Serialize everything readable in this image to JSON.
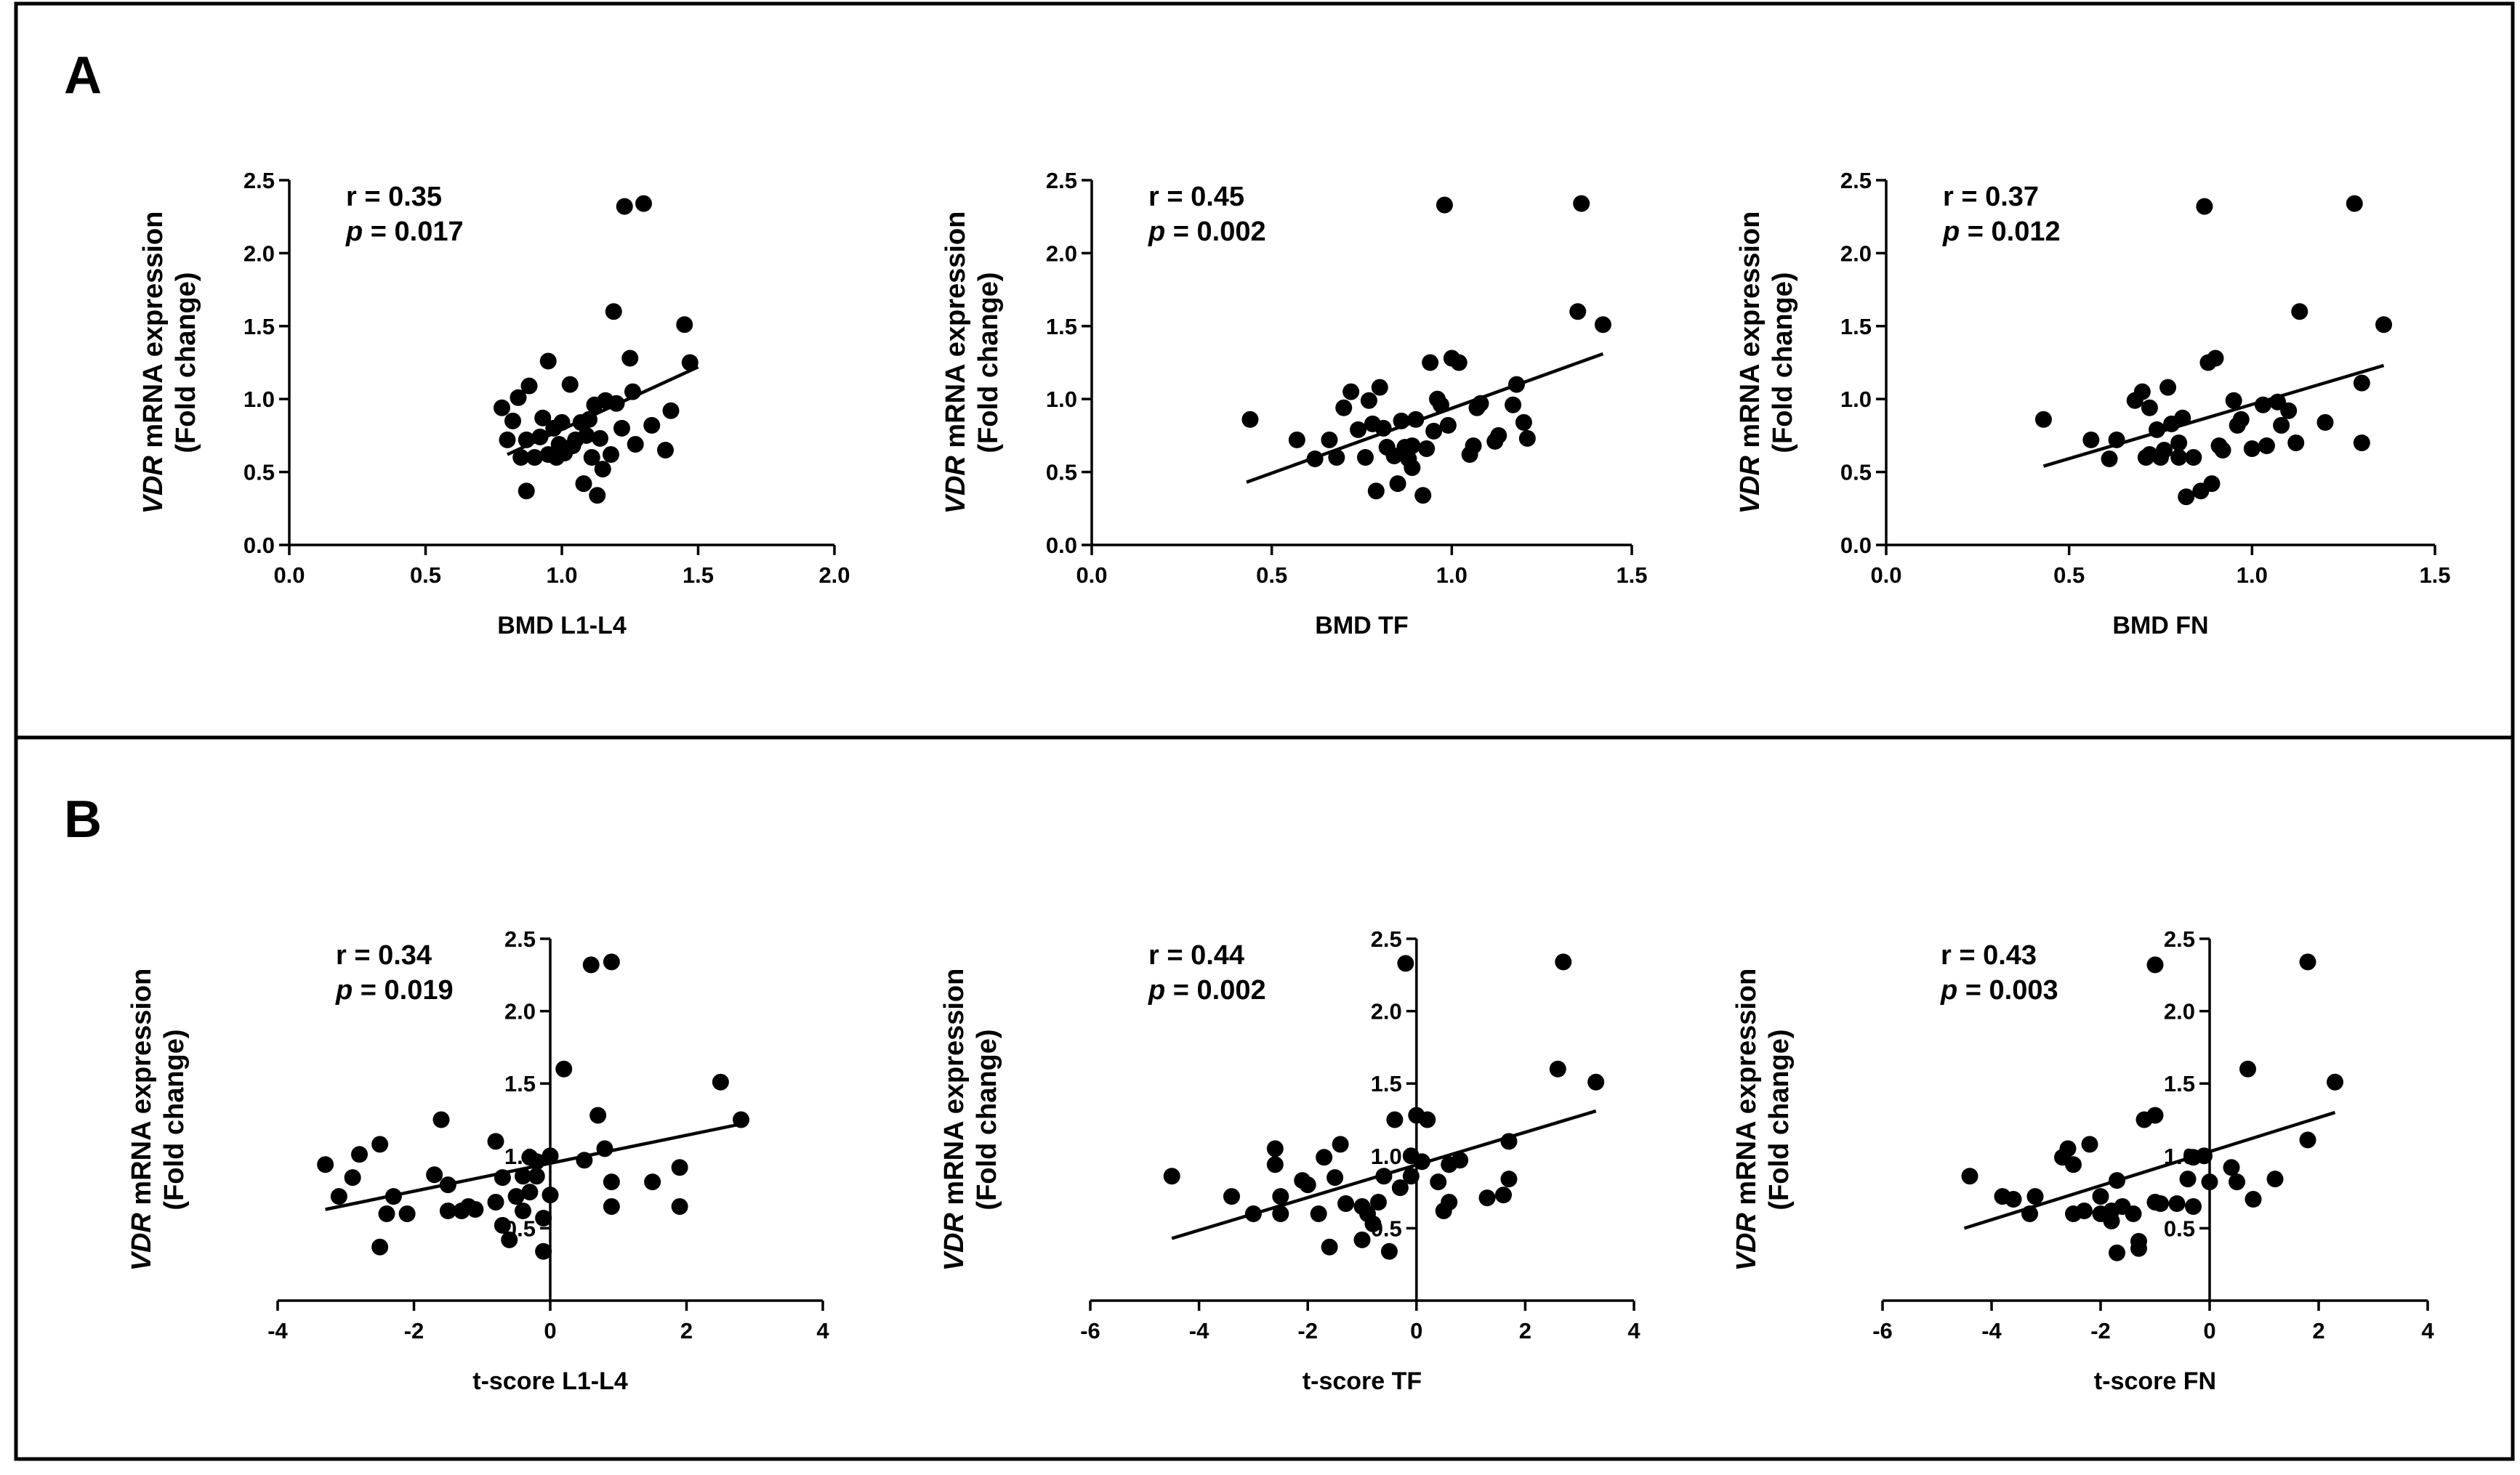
{
  "panels": [
    {
      "letter": "A"
    },
    {
      "letter": "B"
    }
  ],
  "chart_data": [
    {
      "type": "scatter",
      "panel": "A",
      "xlabel": "BMD L1-L4",
      "ylabel_italic": "VDR",
      "ylabel_rest": " mRNA expression",
      "ylabel_line2": "(Fold change)",
      "xlim": [
        0,
        2.0
      ],
      "ylim": [
        0,
        2.5
      ],
      "origin_x": 0,
      "xticks": [
        0,
        0.5,
        1.0,
        1.5,
        2.0
      ],
      "xtick_labels": [
        "0.0",
        "0.5",
        "1.0",
        "1.5",
        "2.0"
      ],
      "yticks": [
        0,
        0.5,
        1.0,
        1.5,
        2.0,
        2.5
      ],
      "ytick_labels": [
        "0.0",
        "0.5",
        "1.0",
        "1.5",
        "2.0",
        "2.5"
      ],
      "r_text": "r = 0.35",
      "p_label": "p",
      "p_rest": " = 0.017",
      "fit": {
        "x": [
          0.8,
          1.5
        ],
        "y": [
          0.62,
          1.22
        ]
      },
      "points": [
        [
          0.78,
          0.94
        ],
        [
          0.8,
          0.72
        ],
        [
          0.82,
          0.85
        ],
        [
          0.84,
          1.01
        ],
        [
          0.85,
          0.6
        ],
        [
          0.87,
          0.37
        ],
        [
          0.87,
          0.72
        ],
        [
          0.88,
          1.09
        ],
        [
          0.9,
          0.6
        ],
        [
          0.92,
          0.74
        ],
        [
          0.93,
          0.87
        ],
        [
          0.95,
          1.26
        ],
        [
          0.95,
          0.62
        ],
        [
          0.97,
          0.8
        ],
        [
          0.98,
          0.6
        ],
        [
          0.99,
          0.69
        ],
        [
          1.0,
          0.84
        ],
        [
          1.01,
          0.63
        ],
        [
          1.03,
          1.1
        ],
        [
          1.04,
          0.68
        ],
        [
          1.05,
          0.72
        ],
        [
          1.07,
          0.84
        ],
        [
          1.08,
          0.42
        ],
        [
          1.09,
          0.75
        ],
        [
          1.1,
          0.86
        ],
        [
          1.11,
          0.6
        ],
        [
          1.12,
          0.96
        ],
        [
          1.13,
          0.34
        ],
        [
          1.14,
          0.73
        ],
        [
          1.15,
          0.52
        ],
        [
          1.16,
          0.99
        ],
        [
          1.18,
          0.62
        ],
        [
          1.19,
          1.6
        ],
        [
          1.2,
          0.97
        ],
        [
          1.22,
          0.8
        ],
        [
          1.23,
          2.32
        ],
        [
          1.25,
          1.28
        ],
        [
          1.26,
          1.05
        ],
        [
          1.27,
          0.69
        ],
        [
          1.3,
          2.34
        ],
        [
          1.33,
          0.82
        ],
        [
          1.38,
          0.65
        ],
        [
          1.4,
          0.92
        ],
        [
          1.45,
          1.51
        ],
        [
          1.47,
          1.25
        ]
      ]
    },
    {
      "type": "scatter",
      "panel": "A",
      "xlabel": "BMD TF",
      "ylabel_italic": "VDR",
      "ylabel_rest": " mRNA expression",
      "ylabel_line2": "(Fold change)",
      "xlim": [
        0,
        1.5
      ],
      "ylim": [
        0,
        2.5
      ],
      "origin_x": 0,
      "xticks": [
        0,
        0.5,
        1.0,
        1.5
      ],
      "xtick_labels": [
        "0.0",
        "0.5",
        "1.0",
        "1.5"
      ],
      "yticks": [
        0,
        0.5,
        1.0,
        1.5,
        2.0,
        2.5
      ],
      "ytick_labels": [
        "0.0",
        "0.5",
        "1.0",
        "1.5",
        "2.0",
        "2.5"
      ],
      "r_text": "r = 0.45",
      "p_label": "p",
      "p_rest": " = 0.002",
      "fit": {
        "x": [
          0.43,
          1.42
        ],
        "y": [
          0.43,
          1.31
        ]
      },
      "points": [
        [
          0.44,
          0.86
        ],
        [
          0.57,
          0.72
        ],
        [
          0.62,
          0.59
        ],
        [
          0.66,
          0.72
        ],
        [
          0.68,
          0.6
        ],
        [
          0.7,
          0.94
        ],
        [
          0.72,
          1.05
        ],
        [
          0.74,
          0.79
        ],
        [
          0.76,
          0.6
        ],
        [
          0.77,
          0.99
        ],
        [
          0.78,
          0.83
        ],
        [
          0.79,
          0.37
        ],
        [
          0.8,
          1.08
        ],
        [
          0.81,
          0.8
        ],
        [
          0.82,
          0.67
        ],
        [
          0.84,
          0.61
        ],
        [
          0.85,
          0.42
        ],
        [
          0.86,
          0.85
        ],
        [
          0.87,
          0.67
        ],
        [
          0.88,
          0.59
        ],
        [
          0.89,
          0.53
        ],
        [
          0.89,
          0.68
        ],
        [
          0.9,
          0.86
        ],
        [
          0.92,
          0.34
        ],
        [
          0.93,
          0.66
        ],
        [
          0.94,
          1.25
        ],
        [
          0.95,
          0.78
        ],
        [
          0.96,
          1.0
        ],
        [
          0.97,
          0.96
        ],
        [
          0.98,
          2.33
        ],
        [
          0.99,
          0.82
        ],
        [
          1.0,
          1.28
        ],
        [
          1.02,
          1.25
        ],
        [
          1.05,
          0.62
        ],
        [
          1.06,
          0.68
        ],
        [
          1.07,
          0.94
        ],
        [
          1.08,
          0.97
        ],
        [
          1.12,
          0.71
        ],
        [
          1.13,
          0.75
        ],
        [
          1.17,
          0.96
        ],
        [
          1.18,
          1.1
        ],
        [
          1.2,
          0.84
        ],
        [
          1.21,
          0.73
        ],
        [
          1.35,
          1.6
        ],
        [
          1.36,
          2.34
        ],
        [
          1.42,
          1.51
        ]
      ]
    },
    {
      "type": "scatter",
      "panel": "A",
      "xlabel": "BMD FN",
      "ylabel_italic": "VDR",
      "ylabel_rest": " mRNA expression",
      "ylabel_line2": "(Fold change)",
      "xlim": [
        0,
        1.5
      ],
      "ylim": [
        0,
        2.5
      ],
      "origin_x": 0,
      "xticks": [
        0,
        0.5,
        1.0,
        1.5
      ],
      "xtick_labels": [
        "0.0",
        "0.5",
        "1.0",
        "1.5"
      ],
      "yticks": [
        0,
        0.5,
        1.0,
        1.5,
        2.0,
        2.5
      ],
      "ytick_labels": [
        "0.0",
        "0.5",
        "1.0",
        "1.5",
        "2.0",
        "2.5"
      ],
      "r_text": "r = 0.37",
      "p_label": "p",
      "p_rest": " = 0.012",
      "fit": {
        "x": [
          0.43,
          1.36
        ],
        "y": [
          0.54,
          1.23
        ]
      },
      "points": [
        [
          0.43,
          0.86
        ],
        [
          0.56,
          0.72
        ],
        [
          0.61,
          0.59
        ],
        [
          0.63,
          0.72
        ],
        [
          0.68,
          0.99
        ],
        [
          0.7,
          1.05
        ],
        [
          0.71,
          0.6
        ],
        [
          0.72,
          0.94
        ],
        [
          0.72,
          0.62
        ],
        [
          0.74,
          0.79
        ],
        [
          0.75,
          0.6
        ],
        [
          0.76,
          0.65
        ],
        [
          0.77,
          1.08
        ],
        [
          0.78,
          0.83
        ],
        [
          0.8,
          0.7
        ],
        [
          0.8,
          0.6
        ],
        [
          0.81,
          0.87
        ],
        [
          0.82,
          0.33
        ],
        [
          0.84,
          0.6
        ],
        [
          0.86,
          0.37
        ],
        [
          0.87,
          2.32
        ],
        [
          0.88,
          1.25
        ],
        [
          0.89,
          0.42
        ],
        [
          0.9,
          1.28
        ],
        [
          0.91,
          0.68
        ],
        [
          0.92,
          0.65
        ],
        [
          0.95,
          0.99
        ],
        [
          0.96,
          0.82
        ],
        [
          0.97,
          0.86
        ],
        [
          1.0,
          0.66
        ],
        [
          1.03,
          0.96
        ],
        [
          1.04,
          0.68
        ],
        [
          1.07,
          0.98
        ],
        [
          1.08,
          0.82
        ],
        [
          1.1,
          0.92
        ],
        [
          1.12,
          0.7
        ],
        [
          1.13,
          1.6
        ],
        [
          1.2,
          0.84
        ],
        [
          1.28,
          2.34
        ],
        [
          1.3,
          0.7
        ],
        [
          1.3,
          1.11
        ],
        [
          1.36,
          1.51
        ]
      ]
    },
    {
      "type": "scatter",
      "panel": "B",
      "xlabel": "t-score L1-L4",
      "ylabel_italic": "VDR",
      "ylabel_rest": " mRNA expression",
      "ylabel_line2": "(Fold change)",
      "xlim": [
        -4,
        4
      ],
      "ylim": [
        0,
        2.5
      ],
      "origin_x": 0,
      "xticks": [
        -4,
        -2,
        0,
        2,
        4
      ],
      "xtick_labels": [
        "-4",
        "-2",
        "0",
        "2",
        "4"
      ],
      "yticks": [
        0.5,
        1.0,
        1.5,
        2.0,
        2.5
      ],
      "ytick_labels": [
        "0.5",
        "1.0",
        "1.5",
        "2.0",
        "2.5"
      ],
      "r_text": "r = 0.34",
      "p_label": "p",
      "p_rest": " = 0.019",
      "fit": {
        "x": [
          -3.3,
          2.8
        ],
        "y": [
          0.63,
          1.22
        ]
      },
      "points": [
        [
          -3.3,
          0.94
        ],
        [
          -3.1,
          0.72
        ],
        [
          -2.9,
          0.85
        ],
        [
          -2.8,
          1.01
        ],
        [
          -2.5,
          1.08
        ],
        [
          -2.5,
          0.37
        ],
        [
          -2.4,
          0.6
        ],
        [
          -2.3,
          0.72
        ],
        [
          -2.1,
          0.6
        ],
        [
          -1.7,
          0.87
        ],
        [
          -1.6,
          1.25
        ],
        [
          -1.5,
          0.62
        ],
        [
          -1.5,
          0.8
        ],
        [
          -1.3,
          0.62
        ],
        [
          -1.2,
          0.65
        ],
        [
          -1.1,
          0.63
        ],
        [
          -0.8,
          1.1
        ],
        [
          -0.8,
          0.68
        ],
        [
          -0.7,
          0.85
        ],
        [
          -0.7,
          0.52
        ],
        [
          -0.6,
          0.42
        ],
        [
          -0.5,
          0.72
        ],
        [
          -0.4,
          0.62
        ],
        [
          -0.4,
          0.86
        ],
        [
          -0.3,
          0.99
        ],
        [
          -0.3,
          0.75
        ],
        [
          -0.2,
          0.86
        ],
        [
          -0.2,
          0.96
        ],
        [
          -0.1,
          0.57
        ],
        [
          -0.1,
          0.34
        ],
        [
          0.0,
          1.0
        ],
        [
          0.0,
          0.73
        ],
        [
          0.2,
          1.6
        ],
        [
          0.5,
          0.97
        ],
        [
          0.6,
          2.32
        ],
        [
          0.7,
          1.28
        ],
        [
          0.8,
          1.05
        ],
        [
          0.9,
          2.34
        ],
        [
          0.9,
          0.82
        ],
        [
          0.9,
          0.65
        ],
        [
          1.5,
          0.82
        ],
        [
          1.9,
          0.65
        ],
        [
          1.9,
          0.92
        ],
        [
          2.5,
          1.51
        ],
        [
          2.8,
          1.25
        ]
      ]
    },
    {
      "type": "scatter",
      "panel": "B",
      "xlabel": "t-score TF",
      "ylabel_italic": "VDR",
      "ylabel_rest": " mRNA expression",
      "ylabel_line2": "(Fold change)",
      "xlim": [
        -6,
        4
      ],
      "ylim": [
        0,
        2.5
      ],
      "origin_x": 0,
      "xticks": [
        -6,
        -4,
        -2,
        0,
        2,
        4
      ],
      "xtick_labels": [
        "-6",
        "-4",
        "-2",
        "0",
        "2",
        "4"
      ],
      "yticks": [
        0.5,
        1.0,
        1.5,
        2.0,
        2.5
      ],
      "ytick_labels": [
        "0.5",
        "1.0",
        "1.5",
        "2.0",
        "2.5"
      ],
      "r_text": "r = 0.44",
      "p_label": "p",
      "p_rest": " = 0.002",
      "fit": {
        "x": [
          -4.5,
          3.3
        ],
        "y": [
          0.43,
          1.31
        ]
      },
      "points": [
        [
          -4.5,
          0.86
        ],
        [
          -3.4,
          0.72
        ],
        [
          -3.0,
          0.6
        ],
        [
          -2.6,
          1.05
        ],
        [
          -2.6,
          0.94
        ],
        [
          -2.5,
          0.72
        ],
        [
          -2.5,
          0.6
        ],
        [
          -2.1,
          0.83
        ],
        [
          -2.0,
          0.8
        ],
        [
          -1.8,
          0.6
        ],
        [
          -1.7,
          0.99
        ],
        [
          -1.6,
          0.37
        ],
        [
          -1.5,
          0.85
        ],
        [
          -1.4,
          1.08
        ],
        [
          -1.3,
          0.67
        ],
        [
          -1.0,
          0.65
        ],
        [
          -1.0,
          0.42
        ],
        [
          -0.9,
          0.6
        ],
        [
          -0.8,
          0.53
        ],
        [
          -0.7,
          0.68
        ],
        [
          -0.6,
          0.86
        ],
        [
          -0.5,
          0.34
        ],
        [
          -0.4,
          1.25
        ],
        [
          -0.3,
          0.78
        ],
        [
          -0.2,
          2.33
        ],
        [
          -0.1,
          1.0
        ],
        [
          -0.1,
          0.86
        ],
        [
          0.0,
          1.28
        ],
        [
          0.1,
          0.96
        ],
        [
          0.2,
          1.25
        ],
        [
          0.4,
          0.82
        ],
        [
          0.5,
          0.62
        ],
        [
          0.6,
          0.68
        ],
        [
          0.6,
          0.94
        ],
        [
          0.8,
          0.97
        ],
        [
          1.3,
          0.71
        ],
        [
          1.6,
          0.73
        ],
        [
          1.7,
          0.84
        ],
        [
          1.7,
          1.1
        ],
        [
          2.6,
          1.6
        ],
        [
          2.7,
          2.34
        ],
        [
          3.3,
          1.51
        ]
      ]
    },
    {
      "type": "scatter",
      "panel": "B",
      "xlabel": "t-score FN",
      "ylabel_italic": "VDR",
      "ylabel_rest": " mRNA expression",
      "ylabel_line2": "(Fold change)",
      "xlim": [
        -6,
        4
      ],
      "ylim": [
        0,
        2.5
      ],
      "origin_x": 0,
      "xticks": [
        -6,
        -4,
        -2,
        0,
        2,
        4
      ],
      "xtick_labels": [
        "-6",
        "-4",
        "-2",
        "0",
        "2",
        "4"
      ],
      "yticks": [
        0.5,
        1.0,
        1.5,
        2.0,
        2.5
      ],
      "ytick_labels": [
        "0.5",
        "1.0",
        "1.5",
        "2.0",
        "2.5"
      ],
      "r_text": "r = 0.43",
      "p_label": "p",
      "p_rest": " = 0.003",
      "fit": {
        "x": [
          -4.5,
          2.3
        ],
        "y": [
          0.5,
          1.3
        ]
      },
      "points": [
        [
          -4.4,
          0.86
        ],
        [
          -3.8,
          0.72
        ],
        [
          -3.6,
          0.7
        ],
        [
          -3.3,
          0.6
        ],
        [
          -3.2,
          0.72
        ],
        [
          -2.7,
          0.99
        ],
        [
          -2.6,
          1.05
        ],
        [
          -2.5,
          0.6
        ],
        [
          -2.5,
          0.94
        ],
        [
          -2.3,
          0.62
        ],
        [
          -2.2,
          1.08
        ],
        [
          -2.0,
          0.6
        ],
        [
          -2.0,
          0.72
        ],
        [
          -1.8,
          0.62
        ],
        [
          -1.8,
          0.55
        ],
        [
          -1.7,
          0.33
        ],
        [
          -1.7,
          0.83
        ],
        [
          -1.6,
          0.65
        ],
        [
          -1.4,
          0.6
        ],
        [
          -1.3,
          0.41
        ],
        [
          -1.3,
          0.36
        ],
        [
          -1.2,
          1.25
        ],
        [
          -1.0,
          1.28
        ],
        [
          -1.0,
          2.32
        ],
        [
          -1.0,
          0.68
        ],
        [
          -0.9,
          0.67
        ],
        [
          -0.6,
          0.67
        ],
        [
          -0.4,
          0.84
        ],
        [
          -0.3,
          0.99
        ],
        [
          -0.3,
          0.65
        ],
        [
          -0.1,
          1.0
        ],
        [
          0.0,
          0.82
        ],
        [
          0.4,
          0.92
        ],
        [
          0.5,
          0.82
        ],
        [
          0.7,
          1.6
        ],
        [
          0.8,
          0.7
        ],
        [
          1.2,
          0.84
        ],
        [
          1.8,
          1.11
        ],
        [
          1.8,
          2.34
        ],
        [
          2.3,
          1.51
        ]
      ]
    }
  ]
}
